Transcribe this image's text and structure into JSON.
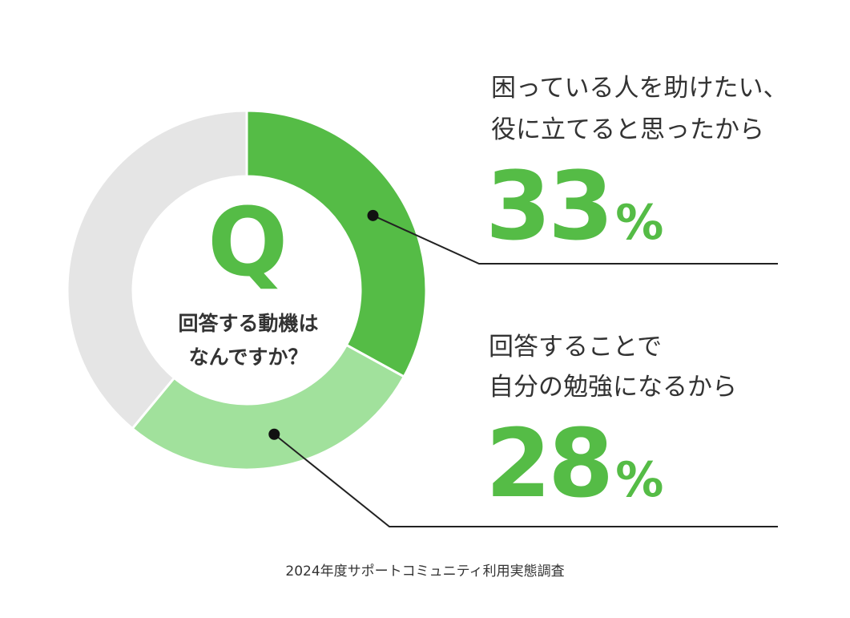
{
  "question": {
    "letter": "Q",
    "line1": "回答する動機は",
    "line2": "なんですか？"
  },
  "chart_data": {
    "type": "pie",
    "categories": [
      "困っている人を助けたい、役に立てると思ったから",
      "回答することで自分の勉強になるから",
      ""
    ],
    "values": [
      33,
      28,
      39
    ],
    "colors": [
      "#55bc46",
      "#a1e19c",
      "#e5e5e5"
    ],
    "donut": true
  },
  "answers": [
    {
      "line1": "困っている人を助けたい、",
      "line2": "役に立てると思ったから",
      "value": "33",
      "unit": "%"
    },
    {
      "line1": "回答することで",
      "line2": "自分の勉強になるから",
      "value": "28",
      "unit": "%"
    }
  ],
  "source": "2024年度サポートコミュニティ利用実態調査"
}
